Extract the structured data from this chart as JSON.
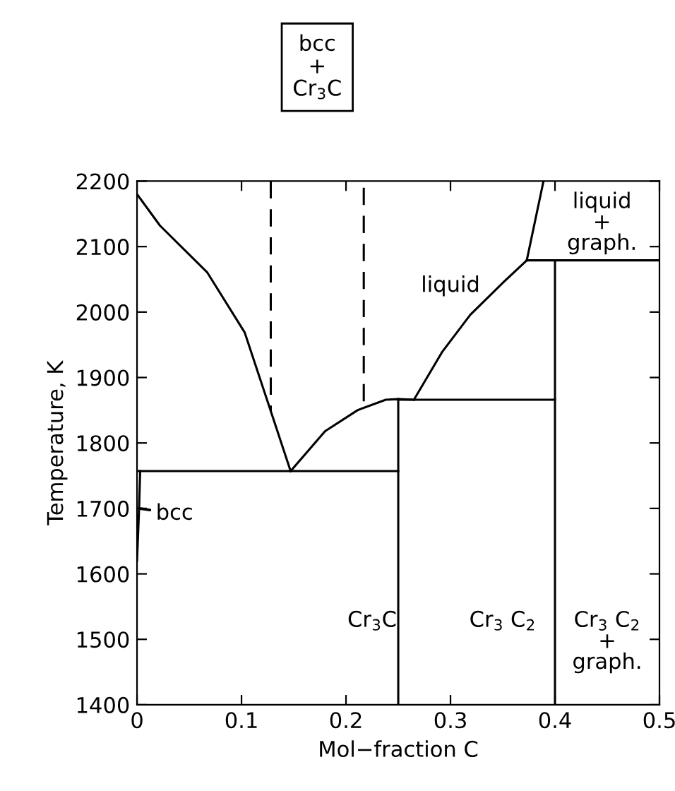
{
  "chart_data": {
    "type": "line",
    "xlabel": "Mol−fraction C",
    "ylabel": "Temperature, K",
    "xlim": [
      0,
      0.5
    ],
    "ylim": [
      1400,
      2200
    ],
    "xticks": [
      0,
      0.1,
      0.2,
      0.3,
      0.4,
      0.5
    ],
    "yticks": [
      1400,
      1500,
      1600,
      1700,
      1800,
      1900,
      2000,
      2100,
      2200
    ],
    "grid": false,
    "legend": false,
    "marker": "none",
    "series": [
      {
        "color": "#000000",
        "x": [
          0,
          0.022,
          0.067,
          0.103,
          0.13,
          0.147
        ],
        "values": [
          2180,
          2132,
          2061,
          1969,
          1839,
          1757
        ]
      },
      {
        "color": "#000000",
        "x": [
          0.147,
          0.18,
          0.211,
          0.238,
          0.25,
          0.265
        ],
        "values": [
          1757,
          1818,
          1850,
          1866,
          1867,
          1866
        ]
      },
      {
        "color": "#000000",
        "x": [
          0.265,
          0.292,
          0.319,
          0.351,
          0.373
        ],
        "values": [
          1866,
          1939,
          1996,
          2046,
          2079
        ]
      },
      {
        "color": "#000000",
        "x": [
          0.373,
          0.389
        ],
        "values": [
          2079,
          2200
        ]
      },
      {
        "color": "#000000",
        "x": [
          0.373,
          0.4
        ],
        "values": [
          2079,
          2079
        ]
      },
      {
        "color": "#000000",
        "x": [
          0,
          0.25
        ],
        "values": [
          1757,
          1757
        ]
      },
      {
        "color": "#000000",
        "x": [
          0.25,
          0.4
        ],
        "values": [
          1866,
          1866
        ]
      },
      {
        "color": "#000000",
        "x": [
          0.25,
          0.25
        ],
        "values": [
          1867,
          1400
        ]
      },
      {
        "color": "#000000",
        "x": [
          0.4,
          0.4,
          0.5
        ],
        "values": [
          1400,
          2079,
          2079
        ]
      },
      {
        "color": "#000000",
        "x": [
          0.003,
          0.002,
          0
        ],
        "values": [
          1757,
          1700,
          1620
        ]
      },
      {
        "color": "#000000",
        "line_style": "dashed",
        "x": [
          0.128,
          0.128
        ],
        "values": [
          2200,
          1848
        ]
      },
      {
        "color": "#000000",
        "line_style": "dashed",
        "x": [
          0.217,
          0.217
        ],
        "values": [
          2190,
          1862
        ]
      }
    ],
    "annotations": [
      "bcc\n+\nCr$_{3}$C",
      "liquid",
      "liquid\n+\ngraph.",
      {
        "text": "bcc",
        "x": 0.002,
        "y": 1700
      },
      "Cr$_{3}$C",
      "Cr$_{3}$ C$_{2}$",
      "Cr$_{3}$ C$_{2}$\n+\ngraph."
    ]
  }
}
